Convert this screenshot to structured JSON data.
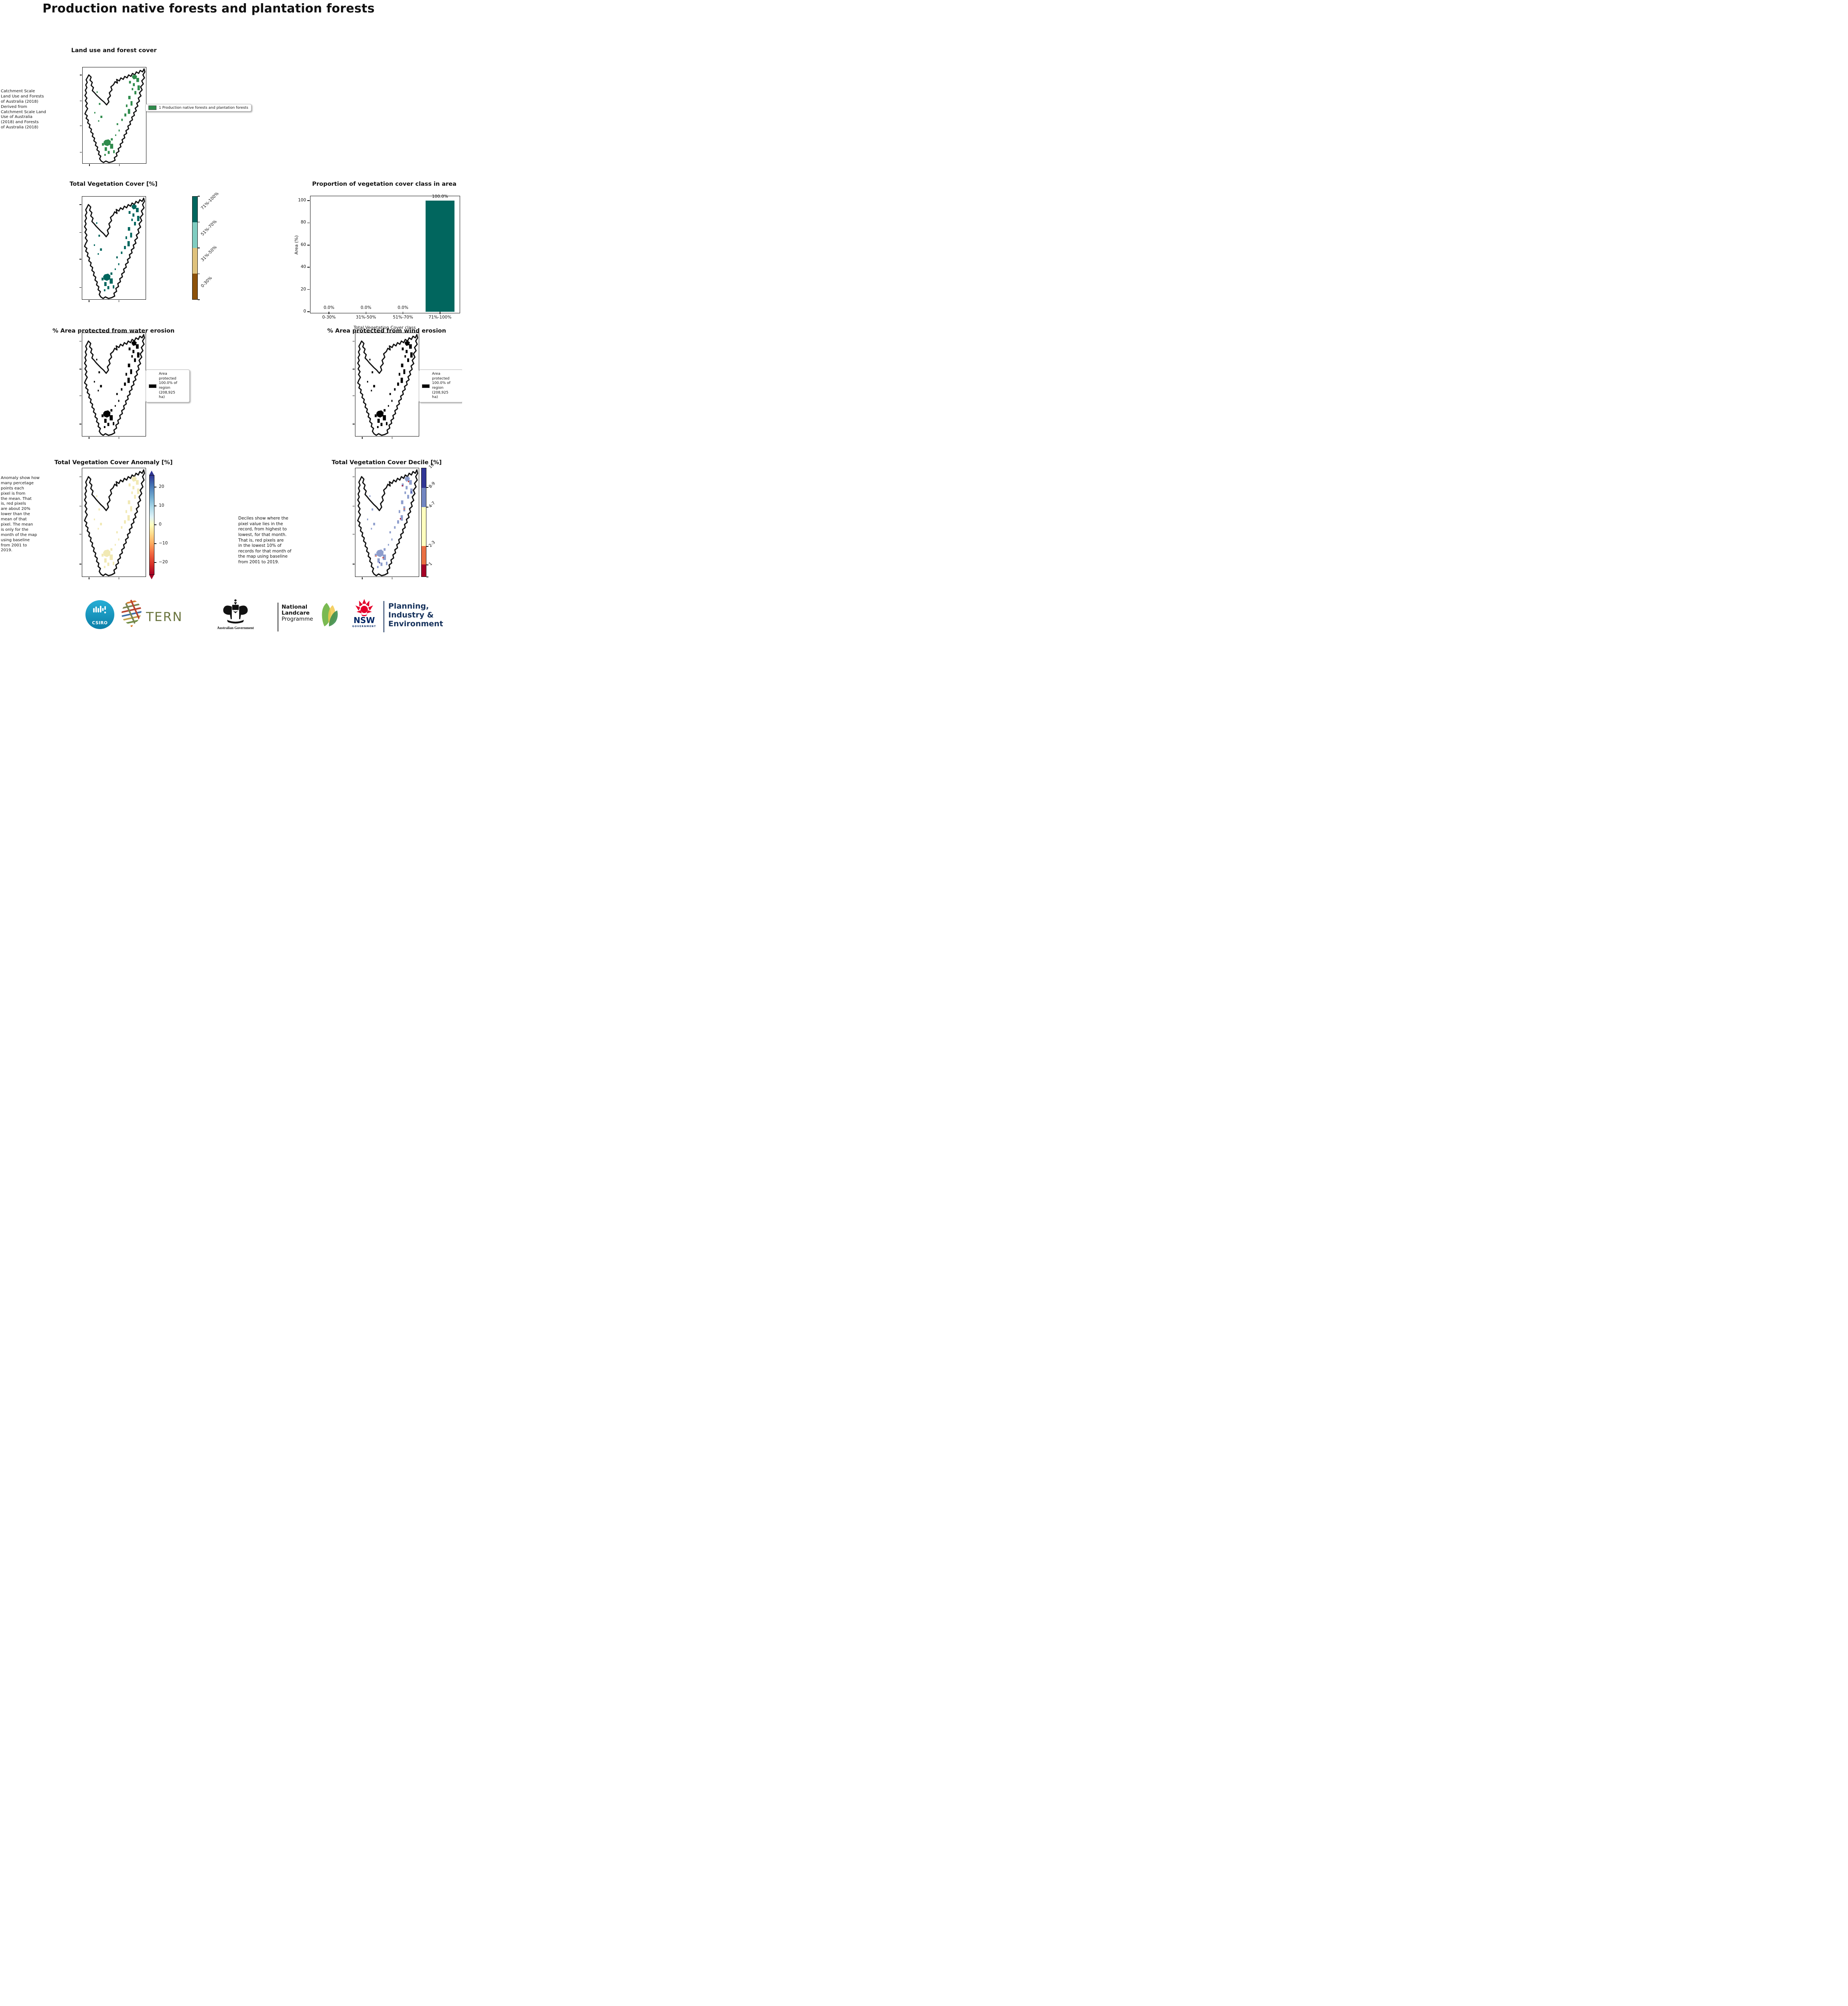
{
  "page": {
    "title": "Production native forests and plantation forests"
  },
  "panels": {
    "landuse": {
      "title": "Land use and forest cover",
      "caption": " Catchment Scale\nLand Use and Forests\nof Australia (2018)\nDerived from\nCatchment Scale Land\nUse of Australia\n(2018) and Forests\nof Australia (2018)",
      "legend_label": "1 Production native forests and plantation forests",
      "patch_color": "#2f8b4c"
    },
    "vegcover": {
      "title": "Total Vegetation Cover [%]",
      "patch_color": "#01665e",
      "colorbar": {
        "classes": [
          {
            "label": "71%-100%",
            "color": "#01665e"
          },
          {
            "label": "51%-70%",
            "color": "#80cdc1"
          },
          {
            "label": "31%-50%",
            "color": "#dfc27d"
          },
          {
            "label": "0-30%",
            "color": "#8c510a"
          }
        ]
      }
    },
    "water": {
      "title": "% Area protected from water erosion (>70%)",
      "legend_label": "Area\nprotected\n100.0% of\nregion\n(208,925\nha)",
      "patch_color": "#000000"
    },
    "wind": {
      "title": "% Area protected from wind erosion (>50%)",
      "legend_label": "Area\nprotected\n100.0% of\nregion\n(208,925\nha)",
      "patch_color": "#000000"
    },
    "anomaly": {
      "title": "Total Vegetation Cover Anomaly [%]",
      "caption": "Anomaly show how\nmany percetage\npoints each\npixel is from\nthe mean. That\nis, red pixels\nare about 20%\nlower than the\nmean of that\npixel. The mean\nis only for the\nmonth of the map\nusing baseline\nfrom 2001 to\n2019.",
      "patch_color": "#f1e9b4",
      "colorbar_ticks": [
        "20",
        "10",
        "0",
        "−10",
        "−20"
      ]
    },
    "decile": {
      "title": "Total Vegetation Cover Decile [%]",
      "caption": "Deciles show where the\npixel value lies in the\nrecord, from highest to\nlowest, for that month.\nThat is, red pixels are\nin the lowest 10% of\nrecords for that month of\nthe map using baseline\nfrom 2001 to 2019.",
      "patch_color": "#7286c1",
      "colorbar": {
        "classes": [
          {
            "label": "10",
            "color": "#313695",
            "h": 18
          },
          {
            "label": "8-9",
            "color": "#7286c1",
            "h": 18
          },
          {
            "label": "4-7",
            "color": "#ffffbf",
            "h": 36
          },
          {
            "label": "2-3",
            "color": "#e96f42",
            "h": 17
          },
          {
            "label": "1",
            "color": "#a50026",
            "h": 11
          }
        ]
      }
    }
  },
  "chart_data": {
    "type": "bar",
    "title": "Proportion of vegetation cover class in area",
    "categories": [
      "0-30%",
      "31%-50%",
      "51%-70%",
      "71%-100%"
    ],
    "values": [
      0.0,
      0.0,
      0.0,
      100.0
    ],
    "value_labels": [
      "0.0%",
      "0.0%",
      "0.0%",
      "100.0%"
    ],
    "xlabel": "Total Vegetation Cover class",
    "ylabel": "Area (%)",
    "yticks": [
      0,
      20,
      40,
      60,
      80,
      100
    ],
    "ylim": [
      0,
      105
    ],
    "bar_color": "#01665e",
    "grid": false,
    "legend": "none"
  },
  "footer": {
    "csiro": {
      "label": "CSIRO",
      "color": "#0e9dc6"
    },
    "tern": {
      "label": "TERN",
      "color": "#6b7540"
    },
    "aus_gov": {
      "label": "Australian Government"
    },
    "landcare": {
      "line1": "National",
      "line2": "Landcare",
      "line3": "Programme",
      "green": "#169a54",
      "light_green": "#6dbd92"
    },
    "nsw": {
      "label": "NSW",
      "sub": "GOVERNMENT",
      "red": "#e4002b",
      "navy": "#002664"
    },
    "dpie": {
      "line1": "Planning,",
      "line2": "Industry &",
      "line3": "Environment",
      "color": "#16325c"
    }
  }
}
